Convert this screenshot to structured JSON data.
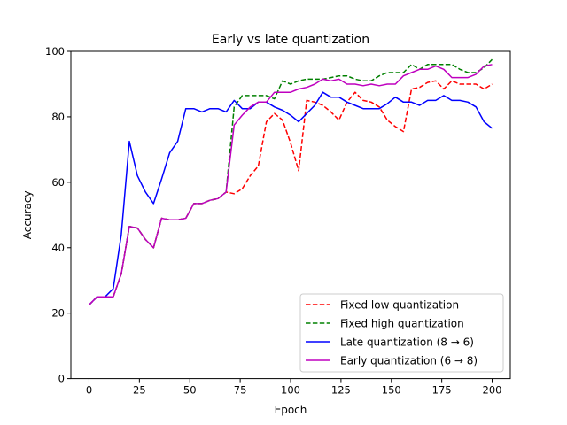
{
  "chart_data": {
    "type": "line",
    "title": "Early vs late quantization",
    "xlabel": "Epoch",
    "ylabel": "Accuracy",
    "xlim": [
      -9,
      209
    ],
    "ylim": [
      0,
      100
    ],
    "xticks": [
      0,
      25,
      50,
      75,
      100,
      125,
      150,
      175,
      200
    ],
    "yticks": [
      0,
      20,
      40,
      60,
      80,
      100
    ],
    "grid": false,
    "legend_position": "lower right",
    "series": [
      {
        "name": "Fixed low quantization",
        "color": "#ff0000",
        "style": "dashed",
        "x": [
          0,
          4,
          8,
          12,
          16,
          20,
          24,
          28,
          32,
          36,
          40,
          44,
          48,
          52,
          56,
          60,
          64,
          68,
          72,
          76,
          80,
          84,
          88,
          92,
          96,
          100,
          104,
          108,
          112,
          116,
          120,
          124,
          128,
          132,
          136,
          140,
          144,
          148,
          152,
          156,
          160,
          164,
          168,
          172,
          176,
          180,
          184,
          188,
          192,
          196,
          200
        ],
        "values": [
          22.5,
          25,
          25,
          25,
          32,
          46.5,
          46,
          42.5,
          40,
          49,
          48.5,
          48.5,
          49,
          53.5,
          53.5,
          54.5,
          55,
          57,
          56.5,
          58,
          62,
          65,
          78.5,
          81,
          79,
          72,
          63.5,
          85,
          84.5,
          83.5,
          81.5,
          79,
          84.5,
          87.5,
          85,
          84.5,
          83,
          79,
          77,
          75.5,
          88.5,
          89,
          90.5,
          91,
          88.5,
          91,
          90,
          90,
          90,
          88.5,
          90
        ]
      },
      {
        "name": "Fixed high quantization",
        "color": "#008000",
        "style": "dashed",
        "x": [
          0,
          4,
          8,
          12,
          16,
          20,
          24,
          28,
          32,
          36,
          40,
          44,
          48,
          52,
          56,
          60,
          64,
          68,
          72,
          76,
          80,
          84,
          88,
          92,
          96,
          100,
          104,
          108,
          112,
          116,
          120,
          124,
          128,
          132,
          136,
          140,
          144,
          148,
          152,
          156,
          160,
          164,
          168,
          172,
          176,
          180,
          184,
          188,
          192,
          196,
          200
        ],
        "values": [
          22.5,
          25,
          25,
          25,
          32,
          46.5,
          46,
          42.5,
          40,
          49,
          48.5,
          48.5,
          49,
          53.5,
          53.5,
          54.5,
          55,
          57,
          83,
          86.5,
          86.5,
          86.5,
          86.5,
          85.5,
          91,
          90,
          91,
          91.5,
          91.5,
          91.5,
          92,
          92.5,
          92.5,
          91.5,
          91,
          91,
          92.5,
          93.5,
          93.5,
          93.5,
          96,
          94.5,
          96,
          96,
          96,
          96,
          94.5,
          93.5,
          93.5,
          95,
          97.5
        ]
      },
      {
        "name": "Late quantization (8 → 6)",
        "color": "#0000ff",
        "style": "solid",
        "x": [
          0,
          4,
          8,
          12,
          16,
          20,
          24,
          28,
          32,
          36,
          40,
          44,
          48,
          52,
          56,
          60,
          64,
          68,
          72,
          76,
          80,
          84,
          88,
          92,
          96,
          100,
          104,
          108,
          112,
          116,
          120,
          124,
          128,
          132,
          136,
          140,
          144,
          148,
          152,
          156,
          160,
          164,
          168,
          172,
          176,
          180,
          184,
          188,
          192,
          196,
          200
        ],
        "values": [
          22.5,
          25,
          25,
          27.5,
          44,
          72.5,
          62,
          57,
          53.5,
          61,
          69,
          72.5,
          82.5,
          82.5,
          81.5,
          82.5,
          82.5,
          81.5,
          85,
          82.5,
          82.5,
          84.5,
          84.5,
          83,
          82,
          80.5,
          78.5,
          81,
          83.5,
          87.5,
          86,
          86,
          84.5,
          83.5,
          82.5,
          82.5,
          82.5,
          84,
          86,
          84.5,
          84.5,
          83.5,
          85,
          85,
          86.5,
          85,
          85,
          84.5,
          83,
          78.5,
          76.5
        ]
      },
      {
        "name": "Early quantization (6 → 8)",
        "color": "#bf00bf",
        "style": "solid",
        "x": [
          0,
          4,
          8,
          12,
          16,
          20,
          24,
          28,
          32,
          36,
          40,
          44,
          48,
          52,
          56,
          60,
          64,
          68,
          72,
          76,
          80,
          84,
          88,
          92,
          96,
          100,
          104,
          108,
          112,
          116,
          120,
          124,
          128,
          132,
          136,
          140,
          144,
          148,
          152,
          156,
          160,
          164,
          168,
          172,
          176,
          180,
          184,
          188,
          192,
          196,
          200
        ],
        "values": [
          22.5,
          25,
          25,
          25,
          32,
          46.5,
          46,
          42.5,
          40,
          49,
          48.5,
          48.5,
          49,
          53.5,
          53.5,
          54.5,
          55,
          57,
          77.5,
          80.5,
          83,
          84.5,
          84.5,
          87.5,
          87.5,
          87.5,
          88.5,
          89,
          90,
          91.5,
          91,
          91.5,
          90,
          90,
          89.5,
          90,
          89.5,
          90,
          90,
          92.5,
          93.5,
          94.5,
          94.5,
          95.5,
          94.5,
          92,
          92,
          92,
          93,
          95.5,
          96
        ]
      }
    ]
  }
}
